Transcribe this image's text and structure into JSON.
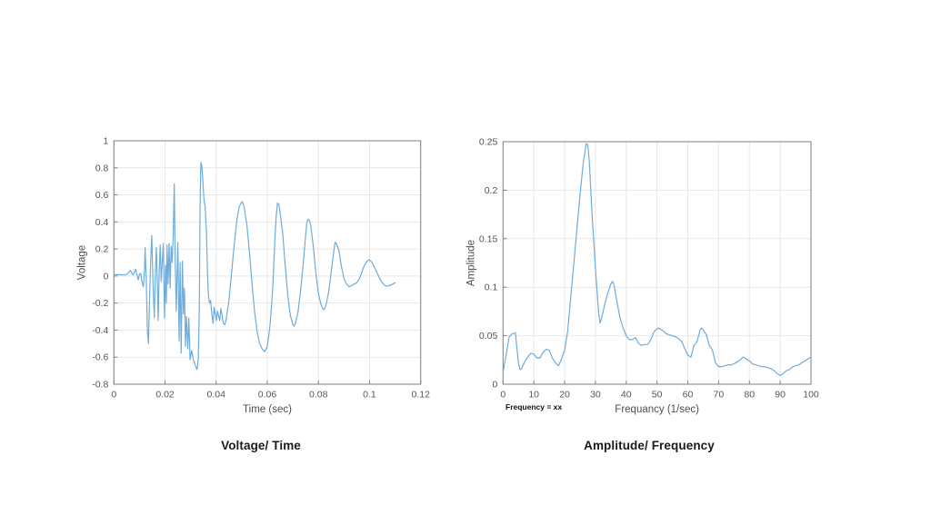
{
  "page": {
    "background": "#ffffff"
  },
  "captions": {
    "left": "Voltage/ Time",
    "right": "Amplitude/ Frequency"
  },
  "style": {
    "axis_color": "#7f7f7f",
    "tick_label_color": "#545454",
    "axis_label_color": "#4d4d4d",
    "grid_color": "#e7e7e7",
    "line_color": "#6dacdc",
    "caption_color": "#1a1a1a"
  },
  "chart_data": [
    {
      "type": "line",
      "title": "Voltage/ Time",
      "xlabel": "Time (sec)",
      "ylabel": "Voltage",
      "xlim": [
        0,
        0.12
      ],
      "ylim": [
        -0.8,
        1
      ],
      "grid": true,
      "legend": "none",
      "xticks": [
        0,
        0.02,
        0.04,
        0.06,
        0.08,
        0.1,
        0.12
      ],
      "xtick_labels": [
        "0",
        "0.02",
        "0.04",
        "0.06",
        "0.08",
        "0.1",
        "0.12"
      ],
      "yticks": [
        -0.8,
        -0.6,
        -0.4,
        -0.2,
        0,
        0.2,
        0.4,
        0.6,
        0.8,
        1
      ],
      "ytick_labels": [
        "-0.8",
        "-0.6",
        "-0.4",
        "-0.2",
        "0",
        "0.2",
        "0.4",
        "0.6",
        "0.8",
        "1"
      ],
      "points": [
        [
          0,
          0.01
        ],
        [
          0.002,
          0.01
        ],
        [
          0.004,
          0.008
        ],
        [
          0.005,
          0.012
        ],
        [
          0.006,
          0.03
        ],
        [
          0.0065,
          0.042
        ],
        [
          0.007,
          0.02
        ],
        [
          0.0075,
          0.008
        ],
        [
          0.008,
          0.028
        ],
        [
          0.0085,
          0.05
        ],
        [
          0.009,
          0.012
        ],
        [
          0.0095,
          -0.028
        ],
        [
          0.01,
          0.012
        ],
        [
          0.0105,
          0.02
        ],
        [
          0.011,
          -0.045
        ],
        [
          0.0115,
          -0.08
        ],
        [
          0.012,
          0.06
        ],
        [
          0.0122,
          0.21
        ],
        [
          0.0127,
          -0.06
        ],
        [
          0.0131,
          -0.41
        ],
        [
          0.0135,
          -0.5
        ],
        [
          0.014,
          -0.12
        ],
        [
          0.0144,
          0.12
        ],
        [
          0.0148,
          0.3
        ],
        [
          0.0153,
          -0.06
        ],
        [
          0.0158,
          -0.31
        ],
        [
          0.0162,
          0.02
        ],
        [
          0.0166,
          0.21
        ],
        [
          0.017,
          -0.06
        ],
        [
          0.0173,
          -0.33
        ],
        [
          0.0177,
          0.02
        ],
        [
          0.0181,
          0.23
        ],
        [
          0.0185,
          -0.04
        ],
        [
          0.0189,
          0.1
        ],
        [
          0.0193,
          0.24
        ],
        [
          0.0198,
          -0.31
        ],
        [
          0.0202,
          0.08
        ],
        [
          0.0205,
          -0.2
        ],
        [
          0.0208,
          0.23
        ],
        [
          0.0212,
          -0.06
        ],
        [
          0.0216,
          0.24
        ],
        [
          0.022,
          -0.09
        ],
        [
          0.0224,
          0.22
        ],
        [
          0.0228,
          0.1
        ],
        [
          0.0232,
          0.3
        ],
        [
          0.0236,
          0.68
        ],
        [
          0.024,
          0.08
        ],
        [
          0.0244,
          -0.26
        ],
        [
          0.025,
          0.25
        ],
        [
          0.0255,
          -0.48
        ],
        [
          0.0259,
          0.1
        ],
        [
          0.0263,
          -0.57
        ],
        [
          0.0268,
          0.11
        ],
        [
          0.0272,
          -0.28
        ],
        [
          0.0276,
          -0.09
        ],
        [
          0.028,
          -0.52
        ],
        [
          0.0284,
          -0.3
        ],
        [
          0.0289,
          -0.54
        ],
        [
          0.0293,
          -0.31
        ],
        [
          0.0298,
          -0.62
        ],
        [
          0.0304,
          -0.55
        ],
        [
          0.0311,
          -0.62
        ],
        [
          0.0318,
          -0.66
        ],
        [
          0.0325,
          -0.69
        ],
        [
          0.033,
          -0.62
        ],
        [
          0.0334,
          -0.25
        ],
        [
          0.0337,
          0.5
        ],
        [
          0.034,
          0.84
        ],
        [
          0.0344,
          0.81
        ],
        [
          0.0348,
          0.7
        ],
        [
          0.0352,
          0.57
        ],
        [
          0.0357,
          0.51
        ],
        [
          0.0362,
          0.32
        ],
        [
          0.0366,
          0.02
        ],
        [
          0.037,
          -0.15
        ],
        [
          0.0374,
          -0.2
        ],
        [
          0.0378,
          -0.18
        ],
        [
          0.0383,
          -0.28
        ],
        [
          0.0388,
          -0.35
        ],
        [
          0.0392,
          -0.23
        ],
        [
          0.0396,
          -0.28
        ],
        [
          0.0401,
          -0.33
        ],
        [
          0.0405,
          -0.26
        ],
        [
          0.041,
          -0.3
        ],
        [
          0.0414,
          -0.33
        ],
        [
          0.0418,
          -0.24
        ],
        [
          0.0422,
          -0.28
        ],
        [
          0.0428,
          -0.35
        ],
        [
          0.0434,
          -0.36
        ],
        [
          0.044,
          -0.31
        ],
        [
          0.045,
          -0.18
        ],
        [
          0.046,
          0.02
        ],
        [
          0.047,
          0.22
        ],
        [
          0.048,
          0.4
        ],
        [
          0.049,
          0.51
        ],
        [
          0.05,
          0.55
        ],
        [
          0.0505,
          0.54
        ],
        [
          0.051,
          0.5
        ],
        [
          0.052,
          0.38
        ],
        [
          0.053,
          0.18
        ],
        [
          0.054,
          -0.05
        ],
        [
          0.055,
          -0.26
        ],
        [
          0.056,
          -0.41
        ],
        [
          0.057,
          -0.5
        ],
        [
          0.058,
          -0.54
        ],
        [
          0.059,
          -0.56
        ],
        [
          0.06,
          -0.52
        ],
        [
          0.061,
          -0.38
        ],
        [
          0.062,
          -0.13
        ],
        [
          0.0625,
          0.06
        ],
        [
          0.063,
          0.28
        ],
        [
          0.0635,
          0.45
        ],
        [
          0.064,
          0.54
        ],
        [
          0.0645,
          0.53
        ],
        [
          0.065,
          0.47
        ],
        [
          0.066,
          0.32
        ],
        [
          0.067,
          0.08
        ],
        [
          0.068,
          -0.14
        ],
        [
          0.069,
          -0.29
        ],
        [
          0.07,
          -0.36
        ],
        [
          0.0705,
          -0.37
        ],
        [
          0.071,
          -0.35
        ],
        [
          0.072,
          -0.27
        ],
        [
          0.073,
          -0.11
        ],
        [
          0.074,
          0.08
        ],
        [
          0.075,
          0.3
        ],
        [
          0.0755,
          0.4
        ],
        [
          0.076,
          0.42
        ],
        [
          0.0765,
          0.41
        ],
        [
          0.077,
          0.37
        ],
        [
          0.078,
          0.22
        ],
        [
          0.079,
          0.02
        ],
        [
          0.08,
          -0.13
        ],
        [
          0.081,
          -0.21
        ],
        [
          0.082,
          -0.25
        ],
        [
          0.0825,
          -0.24
        ],
        [
          0.083,
          -0.21
        ],
        [
          0.084,
          -0.12
        ],
        [
          0.085,
          0.03
        ],
        [
          0.086,
          0.18
        ],
        [
          0.0865,
          0.25
        ],
        [
          0.087,
          0.24
        ],
        [
          0.088,
          0.19
        ],
        [
          0.089,
          0.07
        ],
        [
          0.09,
          -0.02
        ],
        [
          0.091,
          -0.06
        ],
        [
          0.092,
          -0.08
        ],
        [
          0.093,
          -0.07
        ],
        [
          0.094,
          -0.06
        ],
        [
          0.095,
          -0.05
        ],
        [
          0.096,
          -0.02
        ],
        [
          0.097,
          0.03
        ],
        [
          0.098,
          0.08
        ],
        [
          0.099,
          0.11
        ],
        [
          0.1,
          0.12
        ],
        [
          0.101,
          0.1
        ],
        [
          0.102,
          0.06
        ],
        [
          0.103,
          0.02
        ],
        [
          0.104,
          -0.02
        ],
        [
          0.105,
          -0.05
        ],
        [
          0.106,
          -0.07
        ],
        [
          0.107,
          -0.075
        ],
        [
          0.108,
          -0.07
        ],
        [
          0.109,
          -0.06
        ],
        [
          0.11,
          -0.05
        ]
      ]
    },
    {
      "type": "line",
      "title": "Amplitude/ Frequency",
      "xlabel": "Frequancy (1/sec)",
      "ylabel": "Amplitude",
      "annotation": "Frequency  = xx",
      "xlim": [
        0,
        100
      ],
      "ylim": [
        0,
        0.25
      ],
      "grid": true,
      "legend": "none",
      "xticks": [
        0,
        10,
        20,
        30,
        40,
        50,
        60,
        70,
        80,
        90,
        100
      ],
      "xtick_labels": [
        "0",
        "10",
        "20",
        "30",
        "40",
        "50",
        "60",
        "70",
        "80",
        "90",
        "100"
      ],
      "yticks": [
        0,
        0.05,
        0.1,
        0.15,
        0.2,
        0.25
      ],
      "ytick_labels": [
        "0",
        "0.05",
        "0.1",
        "0.15",
        "0.2",
        "0.25"
      ],
      "points": [
        [
          0,
          0.012
        ],
        [
          1,
          0.03
        ],
        [
          2,
          0.049
        ],
        [
          3,
          0.052
        ],
        [
          4,
          0.053
        ],
        [
          5,
          0.022
        ],
        [
          5.5,
          0.015
        ],
        [
          6,
          0.016
        ],
        [
          7,
          0.023
        ],
        [
          8,
          0.028
        ],
        [
          9,
          0.032
        ],
        [
          10,
          0.031
        ],
        [
          11,
          0.027
        ],
        [
          12,
          0.027
        ],
        [
          13,
          0.033
        ],
        [
          14,
          0.036
        ],
        [
          15,
          0.035
        ],
        [
          16,
          0.027
        ],
        [
          17,
          0.022
        ],
        [
          18,
          0.019
        ],
        [
          19,
          0.026
        ],
        [
          20,
          0.035
        ],
        [
          21,
          0.055
        ],
        [
          22,
          0.09
        ],
        [
          23,
          0.125
        ],
        [
          24,
          0.16
        ],
        [
          25,
          0.195
        ],
        [
          26,
          0.227
        ],
        [
          27,
          0.248
        ],
        [
          27.5,
          0.247
        ],
        [
          28,
          0.23
        ],
        [
          29,
          0.17
        ],
        [
          30,
          0.12
        ],
        [
          31,
          0.075
        ],
        [
          31.5,
          0.063
        ],
        [
          32,
          0.068
        ],
        [
          33,
          0.082
        ],
        [
          34,
          0.094
        ],
        [
          35,
          0.103
        ],
        [
          35.5,
          0.106
        ],
        [
          36,
          0.103
        ],
        [
          37,
          0.085
        ],
        [
          38,
          0.068
        ],
        [
          39,
          0.058
        ],
        [
          40,
          0.05
        ],
        [
          41,
          0.046
        ],
        [
          42,
          0.046
        ],
        [
          43,
          0.048
        ],
        [
          44,
          0.042
        ],
        [
          45,
          0.04
        ],
        [
          46,
          0.041
        ],
        [
          47,
          0.041
        ],
        [
          48,
          0.046
        ],
        [
          49,
          0.054
        ],
        [
          50,
          0.057
        ],
        [
          50.5,
          0.058
        ],
        [
          51,
          0.057
        ],
        [
          52,
          0.055
        ],
        [
          53,
          0.052
        ],
        [
          54,
          0.051
        ],
        [
          55,
          0.05
        ],
        [
          56,
          0.049
        ],
        [
          57,
          0.047
        ],
        [
          58,
          0.044
        ],
        [
          59,
          0.037
        ],
        [
          60,
          0.03
        ],
        [
          61,
          0.028
        ],
        [
          62,
          0.04
        ],
        [
          63,
          0.044
        ],
        [
          64,
          0.056
        ],
        [
          64.5,
          0.058
        ],
        [
          65,
          0.056
        ],
        [
          66,
          0.051
        ],
        [
          67,
          0.04
        ],
        [
          68,
          0.035
        ],
        [
          69,
          0.022
        ],
        [
          70,
          0.018
        ],
        [
          71,
          0.018
        ],
        [
          72,
          0.019
        ],
        [
          73,
          0.02
        ],
        [
          74,
          0.02
        ],
        [
          75,
          0.021
        ],
        [
          76,
          0.023
        ],
        [
          77,
          0.025
        ],
        [
          78,
          0.028
        ],
        [
          79,
          0.026
        ],
        [
          80,
          0.024
        ],
        [
          81,
          0.021
        ],
        [
          82,
          0.02
        ],
        [
          83,
          0.019
        ],
        [
          84,
          0.018
        ],
        [
          85,
          0.018
        ],
        [
          86,
          0.017
        ],
        [
          87,
          0.016
        ],
        [
          88,
          0.014
        ],
        [
          89,
          0.011
        ],
        [
          90,
          0.009
        ],
        [
          91,
          0.011
        ],
        [
          92,
          0.014
        ],
        [
          93,
          0.015
        ],
        [
          94,
          0.018
        ],
        [
          95,
          0.019
        ],
        [
          96,
          0.02
        ],
        [
          97,
          0.022
        ],
        [
          98,
          0.024
        ],
        [
          99,
          0.026
        ],
        [
          100,
          0.028
        ]
      ]
    }
  ]
}
